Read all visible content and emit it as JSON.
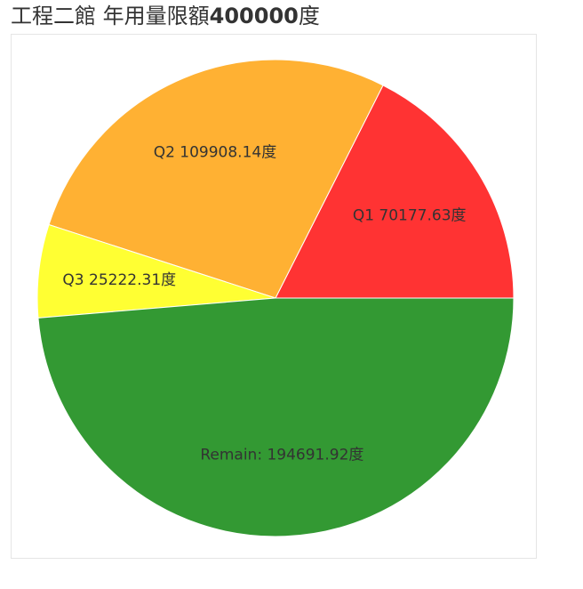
{
  "title": {
    "prefix": "工程二館 年用量限額",
    "limit": "400000",
    "unit": "度"
  },
  "chart_data": {
    "type": "pie",
    "title": "工程二館 年用量限額400000度",
    "total": 400000,
    "unit": "度",
    "slices": [
      {
        "label": "Q1",
        "value": 70177.63,
        "text": "Q1 70177.63度",
        "color": "#ff3333"
      },
      {
        "label": "Q2",
        "value": 109908.14,
        "text": "Q2 109908.14度",
        "color": "#ffb133"
      },
      {
        "label": "Q3",
        "value": 25222.31,
        "text": "Q3 25222.31度",
        "color": "#ffff33"
      },
      {
        "label": "Remain",
        "value": 194691.92,
        "text": "Remain: 194691.92度",
        "color": "#339933"
      }
    ],
    "start_angle_deg": 0,
    "direction": "counterclockwise",
    "slice_stroke": "#ffffff",
    "legend": "none"
  }
}
